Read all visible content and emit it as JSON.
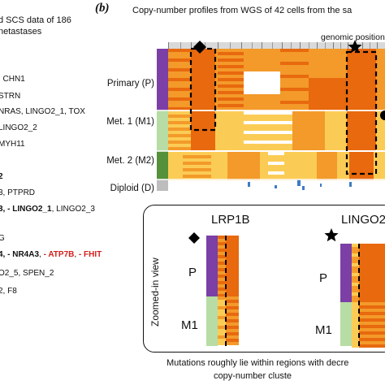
{
  "left_panel": {
    "header_lines": [
      "d SCS data of 186",
      "netastases"
    ],
    "lines": [
      {
        "segments": [
          {
            "text": ", CHN1"
          }
        ]
      },
      {
        "segments": [
          {
            "text": "STRN"
          }
        ]
      },
      {
        "segments": [
          {
            "text": "NRAS, LINGO2_1, TOX"
          }
        ]
      },
      {
        "segments": [
          {
            "text": "LINGO2_2"
          }
        ]
      },
      {
        "segments": [
          {
            "text": "MYH11"
          }
        ]
      },
      {
        "segments": [
          {
            "text": "2",
            "bold": true
          }
        ]
      },
      {
        "segments": [
          {
            "text": "3, PTPRD"
          }
        ]
      },
      {
        "segments": [
          {
            "text": "3, - LINGO2_1",
            "bold": true
          },
          {
            "text": ", LINGO2_3"
          }
        ]
      },
      {
        "segments": [
          {
            "text": "G"
          }
        ]
      },
      {
        "segments": [
          {
            "text": "4, - NR4A3",
            "bold": true
          },
          {
            "text": ", "
          },
          {
            "text": "- ATP7B",
            "red": true
          },
          {
            "text": ", "
          },
          {
            "text": "- FHIT",
            "red": true
          }
        ]
      },
      {
        "segments": [
          {
            "text": "O2_5, SPEN_2"
          }
        ]
      },
      {
        "segments": [
          {
            "text": "2, F8"
          }
        ]
      }
    ]
  },
  "right_panel": {
    "letter": "(b)",
    "title": "Copy-number profiles from WGS of 42 cells from the sa",
    "genomic_position_label": "genomic position",
    "row_labels": [
      "Primary (P)",
      "Met. 1 (M1)",
      "Met. 2 (M2)",
      "Diploid (D)"
    ],
    "group_colors": {
      "primary": "#7b3fa6",
      "met1": "#b7dca4",
      "met2": "#55913b",
      "diploid": "#bdbdbd"
    },
    "cn_colors": {
      "high": "#e8690e",
      "mid": "#f39a2a",
      "low": "#fbcc55",
      "neutral": "#ffffff",
      "loss": "#3e7cc4"
    },
    "markers": [
      "diamond",
      "star"
    ],
    "zoom": {
      "label": "Zoomed-in view",
      "genes": [
        "LRP1B",
        "LINGO2"
      ],
      "row_labels": [
        "P",
        "M1",
        "P",
        "M1"
      ]
    },
    "footer": [
      "Mutations roughly lie within regions with decre",
      "copy-number cluste"
    ]
  }
}
